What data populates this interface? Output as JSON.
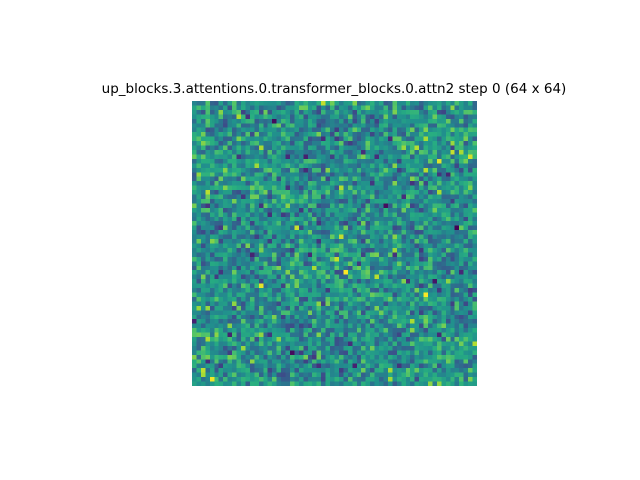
{
  "chart_data": {
    "type": "heatmap",
    "title": "up_blocks.3.attentions.0.transformer_blocks.0.attn2 step 0 (64 x 64)",
    "rows": 64,
    "cols": 64,
    "colormap": "viridis",
    "xlabel": "",
    "ylabel": "",
    "axes_visible": false,
    "grid": false,
    "legend": "none"
  }
}
